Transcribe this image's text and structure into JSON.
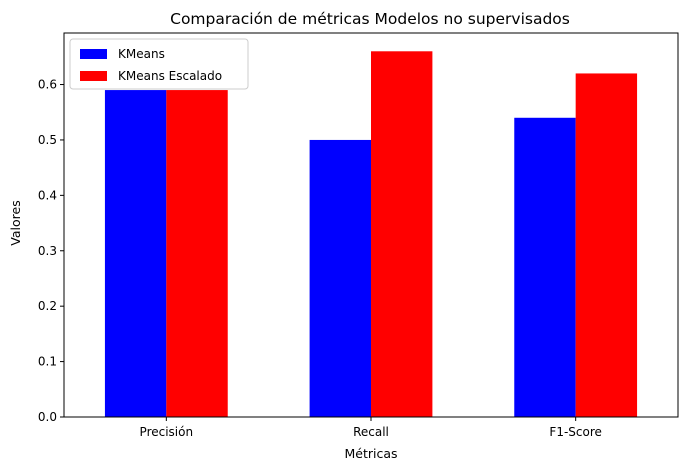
{
  "chart_data": {
    "type": "bar",
    "title": "Comparación de métricas Modelos no supervisados",
    "xlabel": "Métricas",
    "ylabel": "Valores",
    "categories": [
      "Precisión",
      "Recall",
      "F1-Score"
    ],
    "series": [
      {
        "name": "KMeans",
        "color": "#0000ff",
        "values": [
          0.59,
          0.5,
          0.54
        ]
      },
      {
        "name": "KMeans Escalado",
        "color": "#ff0000",
        "values": [
          0.59,
          0.66,
          0.62
        ]
      }
    ],
    "ylim": [
      0,
      0.693
    ],
    "yticks": [
      "0.0",
      "0.1",
      "0.2",
      "0.3",
      "0.4",
      "0.5",
      "0.6"
    ],
    "grid": false,
    "legend_position": "top-left"
  }
}
